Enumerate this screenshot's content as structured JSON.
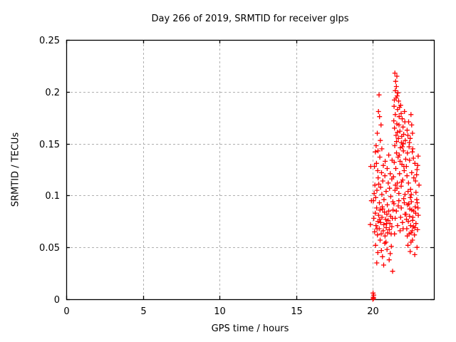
{
  "chart_data": {
    "type": "scatter",
    "title": "Day 266 of 2019, SRMTID for receiver glps",
    "xlabel": "GPS time / hours",
    "ylabel": "SRMTID / TECUs",
    "xlim": [
      0,
      24
    ],
    "ylim": [
      0,
      0.25
    ],
    "xticks": [
      0,
      5,
      10,
      15,
      20
    ],
    "xtick_labels": [
      "0",
      "5",
      "10",
      "15",
      "20"
    ],
    "yticks": [
      0,
      0.05,
      0.1,
      0.15,
      0.2,
      0.25
    ],
    "ytick_labels": [
      "0",
      "0.05",
      "0.1",
      "0.15",
      "0.2",
      "0.25"
    ],
    "grid": true,
    "legend": "none",
    "marker": "plus",
    "marker_color": "#ff0000",
    "grid_color": "#b0b0b0",
    "axis_color": "#000000",
    "background": "#ffffff",
    "points": [
      [
        20.02,
        0.0
      ],
      [
        20.04,
        0.002
      ],
      [
        20.06,
        0.001
      ],
      [
        20.07,
        0.004
      ],
      [
        20.03,
        0.006
      ],
      [
        19.88,
        0.128
      ],
      [
        19.92,
        0.095
      ],
      [
        19.85,
        0.072
      ],
      [
        20.42,
        0.197
      ],
      [
        20.38,
        0.181
      ],
      [
        20.45,
        0.176
      ],
      [
        20.55,
        0.168
      ],
      [
        20.3,
        0.16
      ],
      [
        20.5,
        0.153
      ],
      [
        20.23,
        0.148
      ],
      [
        20.6,
        0.145
      ],
      [
        20.35,
        0.143
      ],
      [
        20.12,
        0.128
      ],
      [
        20.25,
        0.131
      ],
      [
        20.33,
        0.124
      ],
      [
        20.47,
        0.137
      ],
      [
        20.58,
        0.122
      ],
      [
        20.7,
        0.129
      ],
      [
        20.82,
        0.133
      ],
      [
        20.95,
        0.126
      ],
      [
        21.05,
        0.139
      ],
      [
        21.15,
        0.121
      ],
      [
        21.27,
        0.134
      ],
      [
        20.18,
        0.142
      ],
      [
        20.05,
        0.095
      ],
      [
        20.1,
        0.102
      ],
      [
        20.15,
        0.11
      ],
      [
        20.2,
        0.098
      ],
      [
        20.28,
        0.105
      ],
      [
        20.36,
        0.117
      ],
      [
        20.44,
        0.093
      ],
      [
        20.52,
        0.108
      ],
      [
        20.6,
        0.101
      ],
      [
        20.66,
        0.114
      ],
      [
        20.74,
        0.096
      ],
      [
        20.8,
        0.119
      ],
      [
        20.88,
        0.104
      ],
      [
        20.96,
        0.091
      ],
      [
        21.02,
        0.112
      ],
      [
        21.1,
        0.107
      ],
      [
        21.18,
        0.099
      ],
      [
        21.25,
        0.116
      ],
      [
        21.32,
        0.094
      ],
      [
        20.4,
        0.111
      ],
      [
        20.08,
        0.078
      ],
      [
        20.13,
        0.065
      ],
      [
        20.17,
        0.083
      ],
      [
        20.22,
        0.071
      ],
      [
        20.26,
        0.088
      ],
      [
        20.31,
        0.062
      ],
      [
        20.35,
        0.075
      ],
      [
        20.39,
        0.081
      ],
      [
        20.43,
        0.068
      ],
      [
        20.48,
        0.086
      ],
      [
        20.52,
        0.074
      ],
      [
        20.56,
        0.063
      ],
      [
        20.61,
        0.079
      ],
      [
        20.65,
        0.087
      ],
      [
        20.69,
        0.066
      ],
      [
        20.73,
        0.072
      ],
      [
        20.77,
        0.084
      ],
      [
        20.81,
        0.061
      ],
      [
        20.85,
        0.077
      ],
      [
        20.89,
        0.069
      ],
      [
        20.93,
        0.082
      ],
      [
        20.97,
        0.064
      ],
      [
        21.01,
        0.076
      ],
      [
        21.05,
        0.085
      ],
      [
        21.09,
        0.067
      ],
      [
        21.13,
        0.073
      ],
      [
        21.17,
        0.08
      ],
      [
        21.21,
        0.063
      ],
      [
        21.25,
        0.07
      ],
      [
        21.29,
        0.078
      ],
      [
        21.33,
        0.086
      ],
      [
        20.29,
        0.068
      ],
      [
        20.46,
        0.077
      ],
      [
        20.63,
        0.089
      ],
      [
        20.91,
        0.073
      ],
      [
        20.19,
        0.052
      ],
      [
        20.34,
        0.045
      ],
      [
        20.49,
        0.057
      ],
      [
        20.64,
        0.041
      ],
      [
        20.79,
        0.054
      ],
      [
        20.94,
        0.048
      ],
      [
        21.08,
        0.038
      ],
      [
        21.22,
        0.051
      ],
      [
        20.27,
        0.035
      ],
      [
        20.57,
        0.047
      ],
      [
        20.87,
        0.055
      ],
      [
        21.15,
        0.044
      ],
      [
        21.3,
        0.027
      ],
      [
        20.72,
        0.033
      ],
      [
        21.45,
        0.218
      ],
      [
        21.5,
        0.21
      ],
      [
        21.55,
        0.205
      ],
      [
        21.48,
        0.201
      ],
      [
        21.6,
        0.196
      ],
      [
        21.42,
        0.192
      ],
      [
        21.65,
        0.199
      ],
      [
        21.53,
        0.194
      ],
      [
        21.7,
        0.191
      ],
      [
        21.58,
        0.215
      ],
      [
        21.38,
        0.172
      ],
      [
        21.43,
        0.165
      ],
      [
        21.48,
        0.178
      ],
      [
        21.53,
        0.158
      ],
      [
        21.58,
        0.169
      ],
      [
        21.63,
        0.183
      ],
      [
        21.68,
        0.155
      ],
      [
        21.73,
        0.176
      ],
      [
        21.78,
        0.162
      ],
      [
        21.83,
        0.187
      ],
      [
        21.88,
        0.151
      ],
      [
        21.93,
        0.174
      ],
      [
        21.98,
        0.166
      ],
      [
        22.03,
        0.159
      ],
      [
        22.08,
        0.181
      ],
      [
        22.13,
        0.153
      ],
      [
        21.4,
        0.186
      ],
      [
        21.56,
        0.152
      ],
      [
        21.72,
        0.168
      ],
      [
        21.86,
        0.179
      ],
      [
        22.0,
        0.15
      ],
      [
        22.1,
        0.171
      ],
      [
        21.62,
        0.161
      ],
      [
        21.76,
        0.185
      ],
      [
        21.9,
        0.157
      ],
      [
        21.36,
        0.118
      ],
      [
        21.41,
        0.132
      ],
      [
        21.46,
        0.105
      ],
      [
        21.51,
        0.126
      ],
      [
        21.56,
        0.141
      ],
      [
        21.61,
        0.112
      ],
      [
        21.66,
        0.137
      ],
      [
        21.71,
        0.102
      ],
      [
        21.76,
        0.121
      ],
      [
        21.81,
        0.146
      ],
      [
        21.86,
        0.109
      ],
      [
        21.91,
        0.13
      ],
      [
        21.96,
        0.115
      ],
      [
        22.01,
        0.143
      ],
      [
        22.06,
        0.124
      ],
      [
        22.11,
        0.101
      ],
      [
        22.16,
        0.135
      ],
      [
        21.44,
        0.148
      ],
      [
        21.59,
        0.107
      ],
      [
        21.74,
        0.139
      ],
      [
        21.89,
        0.113
      ],
      [
        22.04,
        0.128
      ],
      [
        21.49,
        0.11
      ],
      [
        21.79,
        0.133
      ],
      [
        21.94,
        0.147
      ],
      [
        21.39,
        0.092
      ],
      [
        21.47,
        0.078
      ],
      [
        21.55,
        0.085
      ],
      [
        21.63,
        0.071
      ],
      [
        21.71,
        0.095
      ],
      [
        21.79,
        0.066
      ],
      [
        21.87,
        0.088
      ],
      [
        21.95,
        0.074
      ],
      [
        22.03,
        0.097
      ],
      [
        22.11,
        0.082
      ],
      [
        21.43,
        0.063
      ],
      [
        21.67,
        0.09
      ],
      [
        21.83,
        0.079
      ],
      [
        21.99,
        0.068
      ],
      [
        22.07,
        0.093
      ],
      [
        22.25,
        0.163
      ],
      [
        22.35,
        0.171
      ],
      [
        22.45,
        0.155
      ],
      [
        22.55,
        0.168
      ],
      [
        22.3,
        0.158
      ],
      [
        22.5,
        0.178
      ],
      [
        22.4,
        0.151
      ],
      [
        22.6,
        0.16
      ],
      [
        22.2,
        0.128
      ],
      [
        22.27,
        0.141
      ],
      [
        22.34,
        0.112
      ],
      [
        22.41,
        0.134
      ],
      [
        22.48,
        0.106
      ],
      [
        22.55,
        0.122
      ],
      [
        22.62,
        0.145
      ],
      [
        22.69,
        0.117
      ],
      [
        22.76,
        0.131
      ],
      [
        22.83,
        0.103
      ],
      [
        22.9,
        0.125
      ],
      [
        22.97,
        0.138
      ],
      [
        23.03,
        0.11
      ],
      [
        22.24,
        0.119
      ],
      [
        22.38,
        0.147
      ],
      [
        22.52,
        0.101
      ],
      [
        22.66,
        0.136
      ],
      [
        22.8,
        0.114
      ],
      [
        22.94,
        0.129
      ],
      [
        22.31,
        0.104
      ],
      [
        22.59,
        0.142
      ],
      [
        22.87,
        0.12
      ],
      [
        22.18,
        0.082
      ],
      [
        22.23,
        0.068
      ],
      [
        22.28,
        0.091
      ],
      [
        22.33,
        0.075
      ],
      [
        22.38,
        0.063
      ],
      [
        22.43,
        0.087
      ],
      [
        22.48,
        0.071
      ],
      [
        22.53,
        0.094
      ],
      [
        22.58,
        0.066
      ],
      [
        22.63,
        0.079
      ],
      [
        22.68,
        0.085
      ],
      [
        22.73,
        0.062
      ],
      [
        22.78,
        0.089
      ],
      [
        22.83,
        0.073
      ],
      [
        22.88,
        0.096
      ],
      [
        22.93,
        0.067
      ],
      [
        22.98,
        0.081
      ],
      [
        22.21,
        0.077
      ],
      [
        22.36,
        0.092
      ],
      [
        22.51,
        0.064
      ],
      [
        22.66,
        0.07
      ],
      [
        22.81,
        0.083
      ],
      [
        22.96,
        0.088
      ],
      [
        22.26,
        0.061
      ],
      [
        22.46,
        0.098
      ],
      [
        22.61,
        0.076
      ],
      [
        22.76,
        0.069
      ],
      [
        22.91,
        0.093
      ],
      [
        22.41,
        0.08
      ],
      [
        22.56,
        0.086
      ],
      [
        22.3,
        0.052
      ],
      [
        22.45,
        0.046
      ],
      [
        22.6,
        0.057
      ],
      [
        22.75,
        0.043
      ],
      [
        22.9,
        0.05
      ],
      [
        22.5,
        0.055
      ]
    ]
  }
}
